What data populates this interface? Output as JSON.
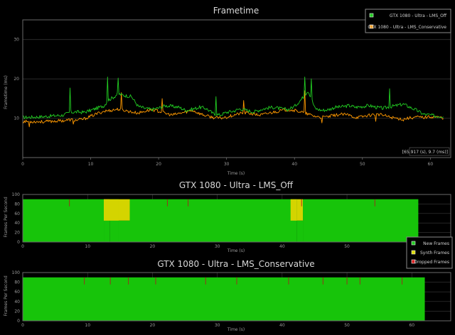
{
  "chart_data": [
    {
      "type": "line",
      "title": "Frametime",
      "xlabel": "Time (s)",
      "ylabel": "Frametime (ms)",
      "xlim": [
        0,
        63
      ],
      "ylim": [
        0,
        35
      ],
      "xticks": [
        "0",
        "10",
        "20",
        "30",
        "40",
        "50",
        "60"
      ],
      "yticks": [
        "10",
        "20",
        "30"
      ],
      "grid": true,
      "legend_position": "top-right",
      "readout": "[65.917 (s), 9.7 (ms)]",
      "series": [
        {
          "name": "GTX 1080 - Ultra - LMS_Off",
          "color": "#22cc22",
          "x": [
            0,
            3,
            6,
            7,
            8,
            9,
            10,
            11,
            12,
            12.5,
            13,
            13.5,
            14,
            15,
            16,
            17,
            18,
            19,
            20,
            21,
            22,
            23,
            24,
            25,
            26,
            27,
            28,
            29,
            30,
            31,
            32,
            33,
            34,
            35,
            36,
            37,
            38,
            39,
            40,
            41,
            42,
            42.5,
            43,
            44,
            45,
            46,
            47,
            48,
            49,
            50,
            51,
            52,
            53,
            54,
            55,
            56,
            57,
            58,
            59,
            60,
            61,
            62
          ],
          "y": [
            10.2,
            10.4,
            10.8,
            11.5,
            11.6,
            11.5,
            12.0,
            12.6,
            13.2,
            14.5,
            15.0,
            15.5,
            16.2,
            15.8,
            15.5,
            13.0,
            12.5,
            12.2,
            12.6,
            13.2,
            13.0,
            12.8,
            12.0,
            12.3,
            12.8,
            12.5,
            11.2,
            10.8,
            11.5,
            11.8,
            12.4,
            12.0,
            11.6,
            12.2,
            12.6,
            12.8,
            12.4,
            12.2,
            13.0,
            14.8,
            17.0,
            15.0,
            12.5,
            12.0,
            12.2,
            12.8,
            12.9,
            13.2,
            12.8,
            13.0,
            13.2,
            12.8,
            12.5,
            12.9,
            13.2,
            13.6,
            12.8,
            12.0,
            11.0,
            10.8,
            10.5,
            10.6
          ],
          "spikes": [
            [
              7,
              17.7
            ],
            [
              12.5,
              20.5
            ],
            [
              14,
              20.2
            ],
            [
              28.5,
              15.5
            ],
            [
              41.5,
              20.5
            ],
            [
              42.5,
              20.0
            ],
            [
              54,
              17.5
            ]
          ]
        },
        {
          "name": "GTX 1080 - Ultra - LMS_Conservative",
          "color": "#ff9900",
          "x": [
            0,
            3,
            6,
            7,
            8,
            9,
            10,
            11,
            12,
            13,
            14,
            15,
            16,
            17,
            18,
            19,
            20,
            21,
            22,
            23,
            24,
            25,
            26,
            27,
            28,
            29,
            30,
            31,
            32,
            33,
            34,
            35,
            36,
            37,
            38,
            39,
            40,
            41,
            42,
            43,
            44,
            45,
            46,
            47,
            48,
            49,
            50,
            51,
            52,
            53,
            54,
            55,
            56,
            57,
            58,
            59,
            60,
            61,
            62
          ],
          "y": [
            9.2,
            9.1,
            9.4,
            9.6,
            9.5,
            9.8,
            10.5,
            11.2,
            11.8,
            12.0,
            12.3,
            12.0,
            11.6,
            11.3,
            11.8,
            12.2,
            11.8,
            11.2,
            10.8,
            11.2,
            11.6,
            12.0,
            11.2,
            10.6,
            10.2,
            10.0,
            10.3,
            10.8,
            11.2,
            11.4,
            11.0,
            10.8,
            11.2,
            11.6,
            11.9,
            12.2,
            12.0,
            11.6,
            11.0,
            10.5,
            10.2,
            10.4,
            10.8,
            11.0,
            10.8,
            10.2,
            10.4,
            10.8,
            11.0,
            10.8,
            10.3,
            10.0,
            9.8,
            10.1,
            10.3,
            10.2,
            10.4,
            10.3,
            10.1
          ],
          "spikes": [
            [
              1,
              7.8
            ],
            [
              7.5,
              8.5
            ],
            [
              14.5,
              16.5
            ],
            [
              20.5,
              15.0
            ],
            [
              32.5,
              14.5
            ],
            [
              41.5,
              17.0
            ],
            [
              44,
              8.8
            ],
            [
              52,
              9.2
            ],
            [
              56,
              9.3
            ]
          ]
        }
      ]
    },
    {
      "type": "area",
      "title": "GTX 1080 - Ultra - LMS_Off",
      "xlabel": "Time (s)",
      "ylabel": "Frames Per Second",
      "xlim": [
        0,
        66
      ],
      "ylim": [
        0,
        100
      ],
      "xticks": [
        "0",
        "10",
        "20",
        "30",
        "40",
        "50"
      ],
      "yticks": [
        "0",
        "20",
        "40",
        "60",
        "80",
        "100"
      ],
      "end_time": 61,
      "total_fps": 90,
      "new_fps_drops": [
        {
          "start": 12.5,
          "end": 14.8,
          "value": 45
        },
        {
          "start": 41.3,
          "end": 42.3,
          "value": 45
        }
      ],
      "synth_regions": [
        {
          "start": 12.5,
          "end": 13.4,
          "value": 45
        },
        {
          "start": 14.8,
          "end": 16.5,
          "value": 45
        },
        {
          "start": 42.3,
          "end": 43.2,
          "value": 45
        }
      ],
      "dropped_marks": [
        7.2,
        22.3,
        25.5,
        43.0,
        54.3
      ]
    },
    {
      "type": "area",
      "title": "GTX 1080 - Ultra - LMS_Conservative",
      "xlabel": "Time (s)",
      "ylabel": "Frames Per Second",
      "xlim": [
        0,
        66
      ],
      "ylim": [
        0,
        100
      ],
      "xticks": [
        "0",
        "10",
        "20",
        "30",
        "40",
        "50",
        "60"
      ],
      "yticks": [
        "0",
        "20",
        "40",
        "60",
        "80",
        "100"
      ],
      "end_time": 62,
      "total_fps": 90,
      "dropped_marks": [
        9.5,
        13.5,
        16.3,
        20.5,
        28.2,
        33.0,
        41.0,
        46.3,
        50.0,
        52.0,
        58.5
      ]
    }
  ],
  "legend_frames": [
    {
      "label": "New Frames",
      "color": "#22cc22"
    },
    {
      "label": "Synth Frames",
      "color": "#dddd00"
    },
    {
      "label": "Dropped Frames",
      "color": "#dd2222"
    }
  ],
  "colors": {
    "new": "#17c40a",
    "synth": "#d4d400",
    "dropped": "#a82020",
    "grid": "#3a3a3a",
    "plot_border": "#6a6a6a"
  }
}
